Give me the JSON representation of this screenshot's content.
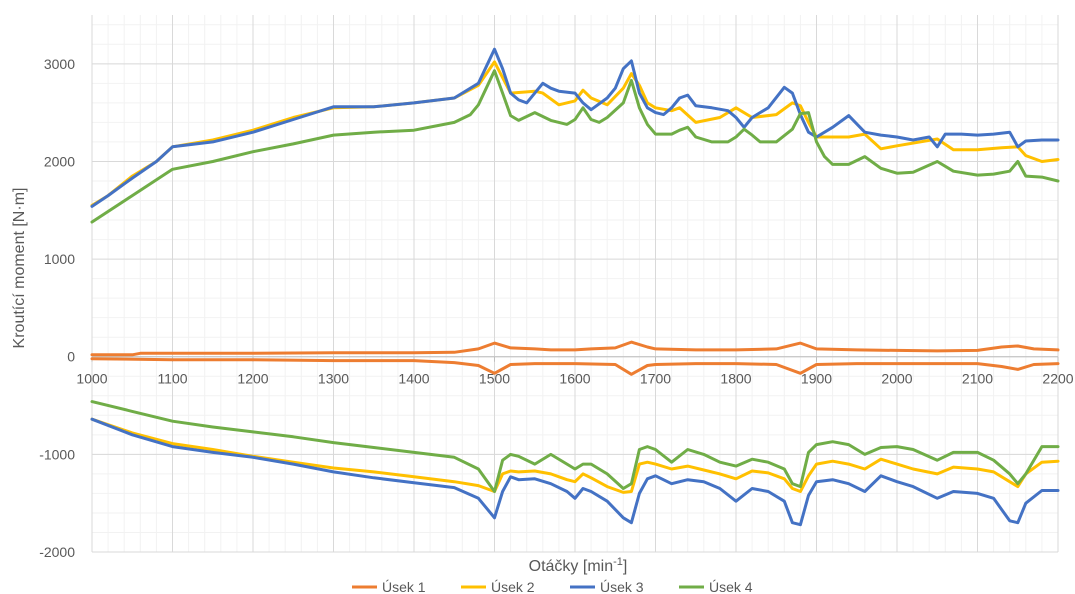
{
  "chart_data": {
    "type": "line",
    "xlabel": "Otáčky [min",
    "xlabel_sup": "-1",
    "xlabel_end": "]",
    "ylabel": "Kroutící moment [N·m]",
    "xlim": [
      1000,
      2200
    ],
    "ylim": [
      -2000,
      3500
    ],
    "x_ticks": [
      1000,
      1100,
      1200,
      1300,
      1400,
      1500,
      1600,
      1700,
      1800,
      1900,
      2000,
      2100,
      2200
    ],
    "y_ticks": [
      -2000,
      -1000,
      0,
      1000,
      2000,
      3000
    ],
    "grid": true,
    "legend_position": "bottom",
    "series": [
      {
        "name": "Úsek 1",
        "color": "#ED7D31",
        "lines": [
          {
            "x": [
              1000,
              1050,
              1060,
              1100,
              1200,
              1300,
              1400,
              1450,
              1480,
              1500,
              1520,
              1550,
              1570,
              1600,
              1620,
              1650,
              1670,
              1690,
              1700,
              1750,
              1800,
              1850,
              1880,
              1900,
              1950,
              2000,
              2050,
              2100,
              2130,
              2150,
              2170,
              2200
            ],
            "y": [
              20,
              20,
              35,
              35,
              35,
              40,
              40,
              45,
              80,
              140,
              90,
              80,
              70,
              70,
              80,
              90,
              150,
              100,
              80,
              70,
              70,
              80,
              140,
              80,
              70,
              65,
              60,
              65,
              100,
              110,
              80,
              70
            ]
          },
          {
            "x": [
              1000,
              1100,
              1200,
              1300,
              1400,
              1450,
              1480,
              1500,
              1520,
              1550,
              1600,
              1650,
              1670,
              1690,
              1700,
              1750,
              1800,
              1850,
              1880,
              1900,
              1950,
              2000,
              2050,
              2100,
              2130,
              2150,
              2170,
              2200
            ],
            "y": [
              -20,
              -30,
              -30,
              -40,
              -40,
              -60,
              -90,
              -170,
              -80,
              -70,
              -70,
              -80,
              -180,
              -90,
              -80,
              -70,
              -70,
              -80,
              -170,
              -80,
              -70,
              -70,
              -70,
              -70,
              -100,
              -130,
              -80,
              -70
            ]
          }
        ]
      },
      {
        "name": "Úsek 2",
        "color": "#FFC000",
        "lines": [
          {
            "x": [
              1000,
              1020,
              1050,
              1080,
              1100,
              1150,
              1200,
              1250,
              1300,
              1350,
              1400,
              1450,
              1480,
              1500,
              1520,
              1550,
              1560,
              1580,
              1600,
              1610,
              1620,
              1640,
              1660,
              1670,
              1680,
              1690,
              1700,
              1720,
              1730,
              1750,
              1780,
              1800,
              1820,
              1850,
              1870,
              1880,
              1890,
              1900,
              1920,
              1940,
              1960,
              1980,
              2000,
              2050,
              2070,
              2100,
              2130,
              2150,
              2160,
              2180,
              2200
            ],
            "y": [
              1550,
              1650,
              1850,
              2000,
              2150,
              2220,
              2320,
              2450,
              2550,
              2560,
              2600,
              2650,
              2780,
              3020,
              2700,
              2720,
              2700,
              2580,
              2620,
              2730,
              2650,
              2580,
              2750,
              2900,
              2780,
              2600,
              2550,
              2520,
              2550,
              2400,
              2450,
              2550,
              2450,
              2480,
              2600,
              2570,
              2400,
              2250,
              2250,
              2250,
              2280,
              2130,
              2160,
              2230,
              2120,
              2120,
              2140,
              2150,
              2060,
              2000,
              2020
            ]
          },
          {
            "x": [
              1000,
              1050,
              1100,
              1150,
              1200,
              1250,
              1300,
              1350,
              1400,
              1450,
              1480,
              1500,
              1510,
              1520,
              1530,
              1550,
              1570,
              1590,
              1600,
              1610,
              1620,
              1640,
              1660,
              1670,
              1680,
              1690,
              1700,
              1720,
              1740,
              1760,
              1780,
              1800,
              1820,
              1840,
              1860,
              1870,
              1880,
              1890,
              1900,
              1920,
              1940,
              1960,
              1980,
              2000,
              2020,
              2050,
              2070,
              2100,
              2120,
              2140,
              2150,
              2160,
              2180,
              2200
            ],
            "y": [
              -640,
              -780,
              -890,
              -950,
              -1020,
              -1080,
              -1140,
              -1180,
              -1230,
              -1280,
              -1320,
              -1380,
              -1200,
              -1170,
              -1180,
              -1170,
              -1200,
              -1260,
              -1280,
              -1200,
              -1240,
              -1330,
              -1390,
              -1380,
              -1100,
              -1080,
              -1100,
              -1150,
              -1120,
              -1160,
              -1200,
              -1250,
              -1170,
              -1190,
              -1250,
              -1350,
              -1380,
              -1220,
              -1100,
              -1070,
              -1100,
              -1150,
              -1050,
              -1100,
              -1150,
              -1200,
              -1130,
              -1150,
              -1180,
              -1280,
              -1330,
              -1200,
              -1080,
              -1070
            ]
          }
        ]
      },
      {
        "name": "Úsek 3",
        "color": "#4472C4",
        "lines": [
          {
            "x": [
              1000,
              1020,
              1050,
              1080,
              1100,
              1150,
              1200,
              1250,
              1300,
              1350,
              1400,
              1450,
              1480,
              1500,
              1510,
              1520,
              1530,
              1540,
              1550,
              1560,
              1570,
              1580,
              1600,
              1610,
              1620,
              1640,
              1650,
              1660,
              1670,
              1680,
              1690,
              1700,
              1710,
              1720,
              1730,
              1740,
              1750,
              1770,
              1790,
              1800,
              1810,
              1820,
              1830,
              1840,
              1860,
              1870,
              1880,
              1890,
              1900,
              1920,
              1940,
              1960,
              1980,
              2000,
              2020,
              2040,
              2050,
              2060,
              2080,
              2100,
              2120,
              2140,
              2150,
              2160,
              2180,
              2200
            ],
            "y": [
              1540,
              1650,
              1830,
              2000,
              2150,
              2200,
              2300,
              2430,
              2560,
              2560,
              2600,
              2650,
              2800,
              3150,
              2950,
              2700,
              2630,
              2600,
              2700,
              2800,
              2750,
              2720,
              2700,
              2600,
              2530,
              2650,
              2750,
              2950,
              3030,
              2700,
              2550,
              2500,
              2480,
              2550,
              2650,
              2680,
              2570,
              2550,
              2520,
              2450,
              2350,
              2450,
              2500,
              2550,
              2760,
              2700,
              2480,
              2300,
              2250,
              2350,
              2470,
              2300,
              2270,
              2250,
              2220,
              2250,
              2150,
              2280,
              2280,
              2270,
              2280,
              2300,
              2150,
              2210,
              2220,
              2220
            ]
          },
          {
            "x": [
              1000,
              1050,
              1100,
              1150,
              1200,
              1250,
              1300,
              1350,
              1400,
              1450,
              1480,
              1500,
              1510,
              1520,
              1530,
              1550,
              1570,
              1590,
              1600,
              1610,
              1620,
              1640,
              1660,
              1670,
              1680,
              1690,
              1700,
              1720,
              1740,
              1760,
              1780,
              1800,
              1820,
              1840,
              1860,
              1870,
              1880,
              1890,
              1900,
              1920,
              1940,
              1960,
              1980,
              2000,
              2020,
              2050,
              2070,
              2100,
              2120,
              2140,
              2150,
              2160,
              2180,
              2200
            ],
            "y": [
              -640,
              -800,
              -920,
              -980,
              -1030,
              -1100,
              -1180,
              -1240,
              -1290,
              -1340,
              -1450,
              -1650,
              -1380,
              -1230,
              -1260,
              -1250,
              -1300,
              -1380,
              -1450,
              -1350,
              -1380,
              -1480,
              -1650,
              -1700,
              -1400,
              -1250,
              -1220,
              -1300,
              -1260,
              -1280,
              -1350,
              -1480,
              -1350,
              -1380,
              -1480,
              -1700,
              -1720,
              -1420,
              -1280,
              -1260,
              -1300,
              -1380,
              -1220,
              -1280,
              -1330,
              -1450,
              -1380,
              -1400,
              -1450,
              -1680,
              -1700,
              -1500,
              -1370,
              -1370
            ]
          }
        ]
      },
      {
        "name": "Úsek 4",
        "color": "#70AD47",
        "lines": [
          {
            "x": [
              1000,
              1050,
              1100,
              1150,
              1200,
              1250,
              1300,
              1350,
              1400,
              1450,
              1470,
              1480,
              1500,
              1510,
              1520,
              1530,
              1550,
              1570,
              1590,
              1600,
              1610,
              1620,
              1630,
              1640,
              1660,
              1670,
              1680,
              1690,
              1700,
              1720,
              1730,
              1740,
              1750,
              1770,
              1790,
              1800,
              1810,
              1820,
              1830,
              1850,
              1870,
              1880,
              1890,
              1900,
              1910,
              1920,
              1940,
              1960,
              1980,
              2000,
              2020,
              2050,
              2070,
              2100,
              2120,
              2140,
              2150,
              2160,
              2180,
              2200
            ],
            "y": [
              1380,
              1650,
              1920,
              2000,
              2100,
              2180,
              2270,
              2300,
              2320,
              2400,
              2480,
              2580,
              2930,
              2700,
              2470,
              2420,
              2500,
              2420,
              2380,
              2430,
              2550,
              2430,
              2400,
              2450,
              2600,
              2830,
              2550,
              2380,
              2280,
              2280,
              2320,
              2350,
              2250,
              2200,
              2200,
              2250,
              2330,
              2270,
              2200,
              2200,
              2330,
              2490,
              2500,
              2200,
              2050,
              1970,
              1970,
              2050,
              1930,
              1880,
              1890,
              2000,
              1900,
              1860,
              1870,
              1900,
              2000,
              1850,
              1840,
              1800
            ]
          },
          {
            "x": [
              1000,
              1050,
              1100,
              1150,
              1200,
              1250,
              1300,
              1350,
              1400,
              1450,
              1480,
              1500,
              1510,
              1520,
              1530,
              1550,
              1570,
              1590,
              1600,
              1610,
              1620,
              1640,
              1660,
              1670,
              1680,
              1690,
              1700,
              1720,
              1740,
              1760,
              1780,
              1800,
              1820,
              1840,
              1860,
              1870,
              1880,
              1890,
              1900,
              1920,
              1940,
              1960,
              1980,
              2000,
              2020,
              2050,
              2070,
              2100,
              2120,
              2140,
              2150,
              2160,
              2180,
              2200
            ],
            "y": [
              -460,
              -560,
              -660,
              -720,
              -770,
              -820,
              -880,
              -930,
              -980,
              -1030,
              -1150,
              -1380,
              -1060,
              -1000,
              -1020,
              -1100,
              -1000,
              -1100,
              -1150,
              -1100,
              -1100,
              -1200,
              -1350,
              -1300,
              -950,
              -920,
              -950,
              -1080,
              -950,
              -1000,
              -1080,
              -1120,
              -1050,
              -1080,
              -1150,
              -1300,
              -1330,
              -980,
              -900,
              -870,
              -900,
              -1000,
              -930,
              -920,
              -950,
              -1060,
              -980,
              -980,
              -1060,
              -1200,
              -1300,
              -1200,
              -920,
              -920
            ]
          }
        ]
      }
    ]
  }
}
